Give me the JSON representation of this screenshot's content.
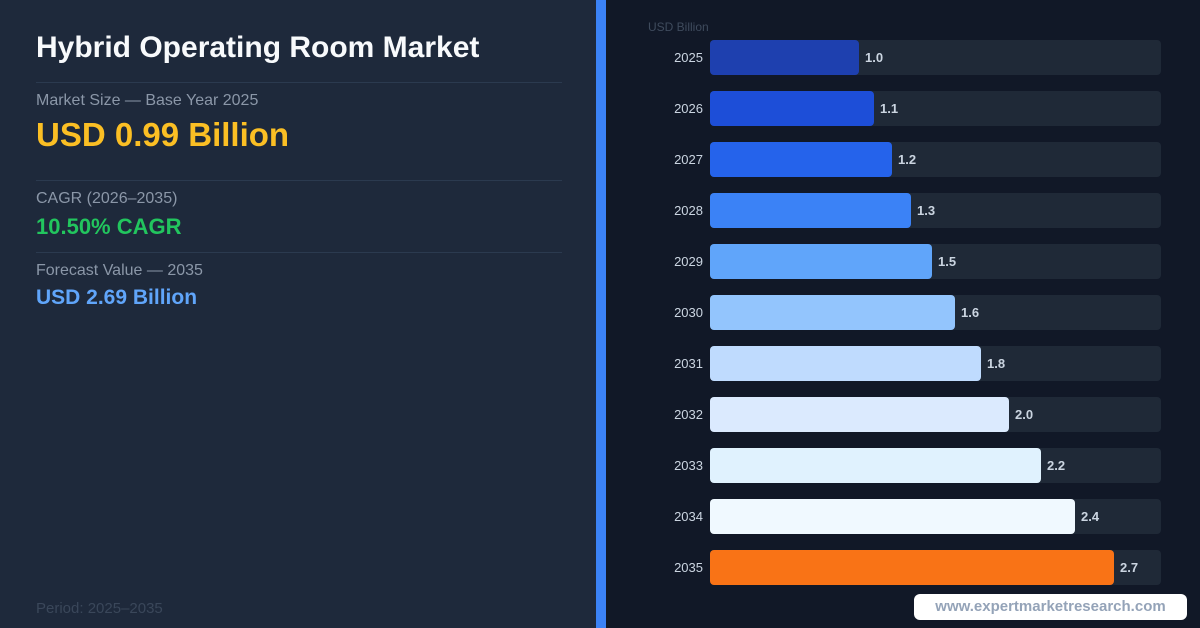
{
  "header": {
    "title": "Hybrid Operating Room Market"
  },
  "stats": {
    "market_size_label": "Market Size — Base Year 2025",
    "market_size_value": "USD 0.99 Billion",
    "cagr_label": "CAGR (2026–2035)",
    "cagr_value": "10.50% CAGR",
    "forecast_label": "Forecast Value — 2035",
    "forecast_value": "USD 2.69 Billion",
    "period": "Period: 2025–2035"
  },
  "colors": {
    "market_size": "#fbbf24",
    "cagr": "#22c55e",
    "forecast": "#60a5fa",
    "accent_divider": "#3b82f6",
    "highlight_bar": "#f97316"
  },
  "chart_data": {
    "type": "bar",
    "orientation": "horizontal",
    "unit_label": "USD Billion",
    "categories": [
      "2025",
      "2026",
      "2027",
      "2028",
      "2029",
      "2030",
      "2031",
      "2032",
      "2033",
      "2034",
      "2035"
    ],
    "values": [
      0.99,
      1.09,
      1.21,
      1.34,
      1.48,
      1.63,
      1.8,
      1.99,
      2.2,
      2.43,
      2.69
    ],
    "value_labels": [
      "1.0",
      "1.1",
      "1.2",
      "1.3",
      "1.5",
      "1.6",
      "1.8",
      "2.0",
      "2.2",
      "2.4",
      "2.7"
    ],
    "bar_colors": [
      "#1e40af",
      "#1d4ed8",
      "#2563eb",
      "#3b82f6",
      "#60a5fa",
      "#93c5fd",
      "#bfdbfe",
      "#dbeafe",
      "#e0f2fe",
      "#f0f9ff",
      "#f97316"
    ],
    "xlim": [
      0,
      3.0
    ],
    "grid": false,
    "legend": "none"
  },
  "footer": {
    "watermark": "www.expertmarketresearch.com"
  }
}
